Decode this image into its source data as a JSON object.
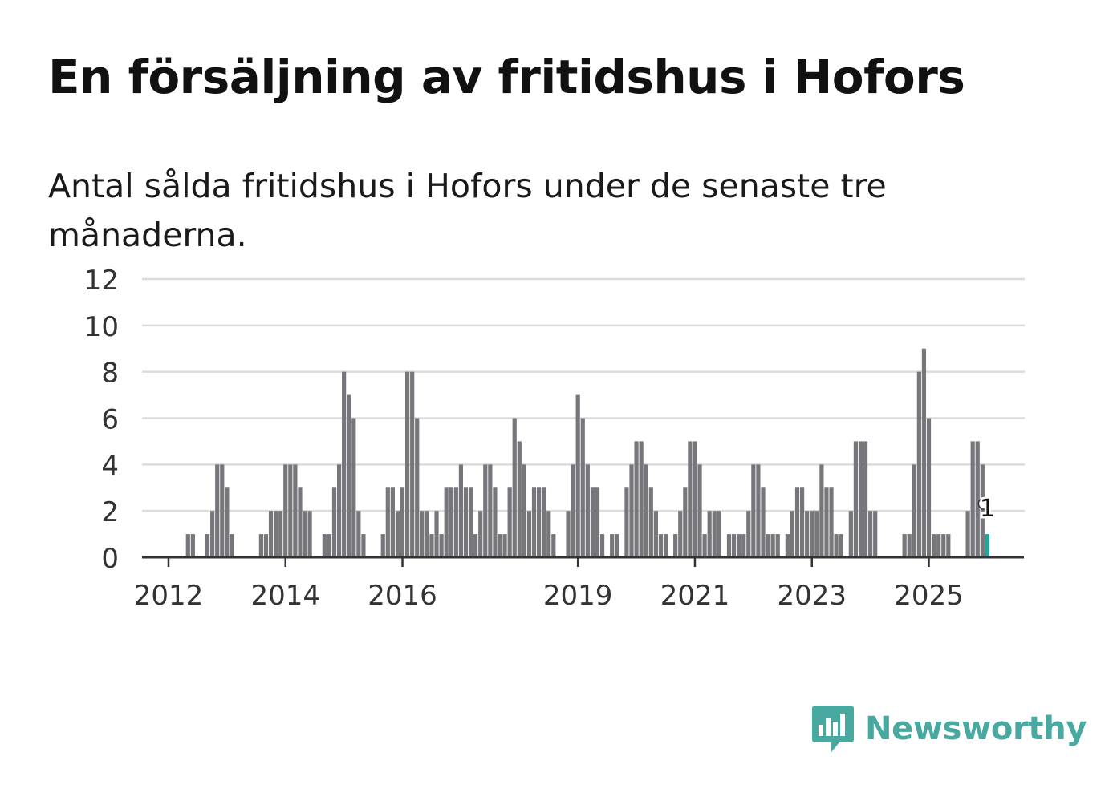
{
  "header": {
    "title": "En försäljning av fritidshus i Hofors",
    "subtitle": "Antal sålda fritidshus i Hofors under de senaste tre månaderna."
  },
  "brand": {
    "name": "Newsworthy",
    "color": "#48a9a0",
    "icon": "newsworthy-logo-icon"
  },
  "chart_data": {
    "type": "bar",
    "title": "En försäljning av fritidshus i Hofors",
    "subtitle": "Antal sålda fritidshus i Hofors under de senaste tre månaderna.",
    "xlabel": "",
    "ylabel": "",
    "ylim": [
      0,
      12
    ],
    "yticks": [
      0,
      2,
      4,
      6,
      8,
      10,
      12
    ],
    "xticks": [
      "2012",
      "2014",
      "2016",
      "2019",
      "2021",
      "2023",
      "2025"
    ],
    "grid": true,
    "legend": "none",
    "bar_color": "#77767b",
    "highlight_color": "#2ba197",
    "start_period": "2011-08",
    "end_period": "2025-08",
    "values": [
      0,
      0,
      0,
      0,
      0,
      0,
      0,
      0,
      0,
      1,
      1,
      0,
      0,
      1,
      2,
      4,
      4,
      3,
      1,
      0,
      0,
      0,
      0,
      0,
      1,
      1,
      2,
      2,
      2,
      4,
      4,
      4,
      3,
      2,
      2,
      0,
      0,
      1,
      1,
      3,
      4,
      8,
      7,
      6,
      2,
      1,
      0,
      0,
      0,
      1,
      3,
      3,
      2,
      3,
      8,
      8,
      6,
      2,
      2,
      1,
      2,
      1,
      3,
      3,
      3,
      4,
      3,
      3,
      1,
      2,
      4,
      4,
      3,
      1,
      1,
      3,
      6,
      5,
      4,
      2,
      3,
      3,
      3,
      2,
      1,
      0,
      0,
      2,
      4,
      7,
      6,
      4,
      3,
      3,
      1,
      0,
      1,
      1,
      0,
      3,
      4,
      5,
      5,
      4,
      3,
      2,
      1,
      1,
      0,
      1,
      2,
      3,
      5,
      5,
      4,
      1,
      2,
      2,
      2,
      0,
      1,
      1,
      1,
      1,
      2,
      4,
      4,
      3,
      1,
      1,
      1,
      0,
      1,
      2,
      3,
      3,
      2,
      2,
      2,
      4,
      3,
      3,
      1,
      1,
      0,
      2,
      5,
      5,
      5,
      2,
      2,
      0,
      0,
      0,
      0,
      0,
      1,
      1,
      4,
      8,
      9,
      6,
      1,
      1,
      1,
      1,
      0,
      0,
      0,
      2,
      5,
      5,
      4,
      1
    ],
    "highlight": {
      "period": "2025-08",
      "value": 1,
      "label": "1"
    }
  }
}
